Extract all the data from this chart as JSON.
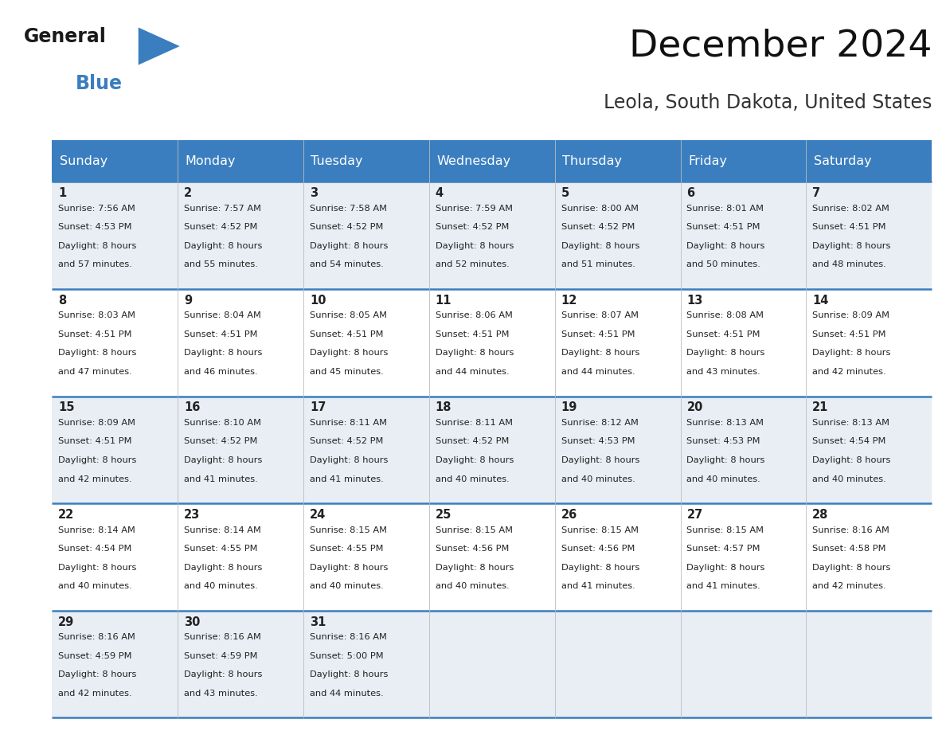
{
  "title": "December 2024",
  "subtitle": "Leola, South Dakota, United States",
  "header_bg": "#3a7ebf",
  "header_text_color": "#ffffff",
  "row_bg_odd": "#e8eef4",
  "row_bg_even": "#ffffff",
  "row_separator_color": "#3a7ebf",
  "text_color": "#222222",
  "days_of_week": [
    "Sunday",
    "Monday",
    "Tuesday",
    "Wednesday",
    "Thursday",
    "Friday",
    "Saturday"
  ],
  "weeks": [
    [
      {
        "day": 1,
        "sunrise": "7:56 AM",
        "sunset": "4:53 PM",
        "daylight_hours": 8,
        "daylight_min_text": "57 minutes."
      },
      {
        "day": 2,
        "sunrise": "7:57 AM",
        "sunset": "4:52 PM",
        "daylight_hours": 8,
        "daylight_min_text": "55 minutes."
      },
      {
        "day": 3,
        "sunrise": "7:58 AM",
        "sunset": "4:52 PM",
        "daylight_hours": 8,
        "daylight_min_text": "54 minutes."
      },
      {
        "day": 4,
        "sunrise": "7:59 AM",
        "sunset": "4:52 PM",
        "daylight_hours": 8,
        "daylight_min_text": "52 minutes."
      },
      {
        "day": 5,
        "sunrise": "8:00 AM",
        "sunset": "4:52 PM",
        "daylight_hours": 8,
        "daylight_min_text": "51 minutes."
      },
      {
        "day": 6,
        "sunrise": "8:01 AM",
        "sunset": "4:51 PM",
        "daylight_hours": 8,
        "daylight_min_text": "50 minutes."
      },
      {
        "day": 7,
        "sunrise": "8:02 AM",
        "sunset": "4:51 PM",
        "daylight_hours": 8,
        "daylight_min_text": "48 minutes."
      }
    ],
    [
      {
        "day": 8,
        "sunrise": "8:03 AM",
        "sunset": "4:51 PM",
        "daylight_hours": 8,
        "daylight_min_text": "47 minutes."
      },
      {
        "day": 9,
        "sunrise": "8:04 AM",
        "sunset": "4:51 PM",
        "daylight_hours": 8,
        "daylight_min_text": "46 minutes."
      },
      {
        "day": 10,
        "sunrise": "8:05 AM",
        "sunset": "4:51 PM",
        "daylight_hours": 8,
        "daylight_min_text": "45 minutes."
      },
      {
        "day": 11,
        "sunrise": "8:06 AM",
        "sunset": "4:51 PM",
        "daylight_hours": 8,
        "daylight_min_text": "44 minutes."
      },
      {
        "day": 12,
        "sunrise": "8:07 AM",
        "sunset": "4:51 PM",
        "daylight_hours": 8,
        "daylight_min_text": "44 minutes."
      },
      {
        "day": 13,
        "sunrise": "8:08 AM",
        "sunset": "4:51 PM",
        "daylight_hours": 8,
        "daylight_min_text": "43 minutes."
      },
      {
        "day": 14,
        "sunrise": "8:09 AM",
        "sunset": "4:51 PM",
        "daylight_hours": 8,
        "daylight_min_text": "42 minutes."
      }
    ],
    [
      {
        "day": 15,
        "sunrise": "8:09 AM",
        "sunset": "4:51 PM",
        "daylight_hours": 8,
        "daylight_min_text": "42 minutes."
      },
      {
        "day": 16,
        "sunrise": "8:10 AM",
        "sunset": "4:52 PM",
        "daylight_hours": 8,
        "daylight_min_text": "41 minutes."
      },
      {
        "day": 17,
        "sunrise": "8:11 AM",
        "sunset": "4:52 PM",
        "daylight_hours": 8,
        "daylight_min_text": "41 minutes."
      },
      {
        "day": 18,
        "sunrise": "8:11 AM",
        "sunset": "4:52 PM",
        "daylight_hours": 8,
        "daylight_min_text": "40 minutes."
      },
      {
        "day": 19,
        "sunrise": "8:12 AM",
        "sunset": "4:53 PM",
        "daylight_hours": 8,
        "daylight_min_text": "40 minutes."
      },
      {
        "day": 20,
        "sunrise": "8:13 AM",
        "sunset": "4:53 PM",
        "daylight_hours": 8,
        "daylight_min_text": "40 minutes."
      },
      {
        "day": 21,
        "sunrise": "8:13 AM",
        "sunset": "4:54 PM",
        "daylight_hours": 8,
        "daylight_min_text": "40 minutes."
      }
    ],
    [
      {
        "day": 22,
        "sunrise": "8:14 AM",
        "sunset": "4:54 PM",
        "daylight_hours": 8,
        "daylight_min_text": "40 minutes."
      },
      {
        "day": 23,
        "sunrise": "8:14 AM",
        "sunset": "4:55 PM",
        "daylight_hours": 8,
        "daylight_min_text": "40 minutes."
      },
      {
        "day": 24,
        "sunrise": "8:15 AM",
        "sunset": "4:55 PM",
        "daylight_hours": 8,
        "daylight_min_text": "40 minutes."
      },
      {
        "day": 25,
        "sunrise": "8:15 AM",
        "sunset": "4:56 PM",
        "daylight_hours": 8,
        "daylight_min_text": "40 minutes."
      },
      {
        "day": 26,
        "sunrise": "8:15 AM",
        "sunset": "4:56 PM",
        "daylight_hours": 8,
        "daylight_min_text": "41 minutes."
      },
      {
        "day": 27,
        "sunrise": "8:15 AM",
        "sunset": "4:57 PM",
        "daylight_hours": 8,
        "daylight_min_text": "41 minutes."
      },
      {
        "day": 28,
        "sunrise": "8:16 AM",
        "sunset": "4:58 PM",
        "daylight_hours": 8,
        "daylight_min_text": "42 minutes."
      }
    ],
    [
      {
        "day": 29,
        "sunrise": "8:16 AM",
        "sunset": "4:59 PM",
        "daylight_hours": 8,
        "daylight_min_text": "42 minutes."
      },
      {
        "day": 30,
        "sunrise": "8:16 AM",
        "sunset": "4:59 PM",
        "daylight_hours": 8,
        "daylight_min_text": "43 minutes."
      },
      {
        "day": 31,
        "sunrise": "8:16 AM",
        "sunset": "5:00 PM",
        "daylight_hours": 8,
        "daylight_min_text": "44 minutes."
      },
      null,
      null,
      null,
      null
    ]
  ],
  "logo_color": "#3a7ebf",
  "logo_triangle_color": "#3a7ebf",
  "logo_general_color": "#1a1a1a",
  "logo_blue_color": "#3a7ebf"
}
